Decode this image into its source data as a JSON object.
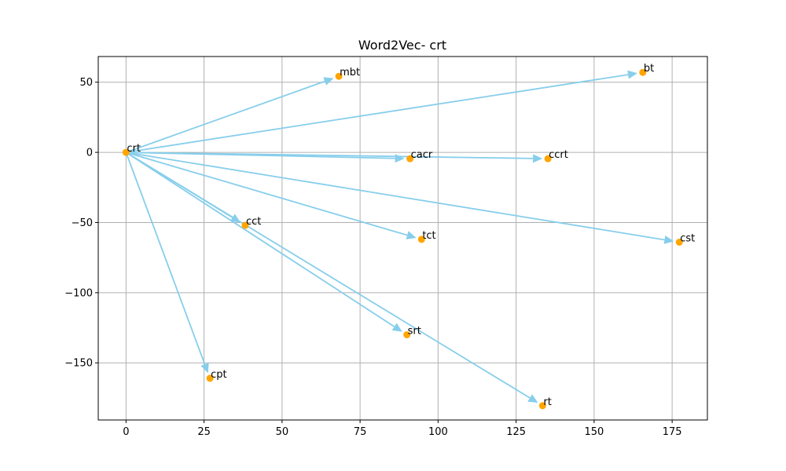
{
  "chart_data": {
    "type": "scatter",
    "title": "Word2Vec- crt",
    "xlabel": "",
    "ylabel": "",
    "xlim": [
      -8.9,
      186.3
    ],
    "ylim": [
      -190.7,
      68.3
    ],
    "xticks": [
      0,
      25,
      50,
      75,
      100,
      125,
      150,
      175
    ],
    "yticks": [
      50,
      0,
      -50,
      -100,
      -150
    ],
    "ytick_labels": [
      "50",
      "0",
      "−50",
      "−100",
      "−150"
    ],
    "grid": true,
    "origin": {
      "label": "crt",
      "x": 0,
      "y": 0
    },
    "points": [
      {
        "label": "mbt",
        "x": 68.2,
        "y": 54.2
      },
      {
        "label": "bt",
        "x": 165.6,
        "y": 57.0
      },
      {
        "label": "cacr",
        "x": 91.0,
        "y": -4.5
      },
      {
        "label": "ccrt",
        "x": 135.2,
        "y": -4.5
      },
      {
        "label": "cct",
        "x": 38.2,
        "y": -52.0
      },
      {
        "label": "tct",
        "x": 94.7,
        "y": -62.0
      },
      {
        "label": "cst",
        "x": 177.3,
        "y": -64.0
      },
      {
        "label": "srt",
        "x": 90.0,
        "y": -130.0
      },
      {
        "label": "cpt",
        "x": 26.9,
        "y": -161.0
      },
      {
        "label": "rt",
        "x": 133.5,
        "y": -180.5
      }
    ],
    "colors": {
      "arrow": "#87ceeb",
      "point": "#ffa500",
      "grid": "#b0b0b0",
      "axis": "#000000"
    }
  }
}
